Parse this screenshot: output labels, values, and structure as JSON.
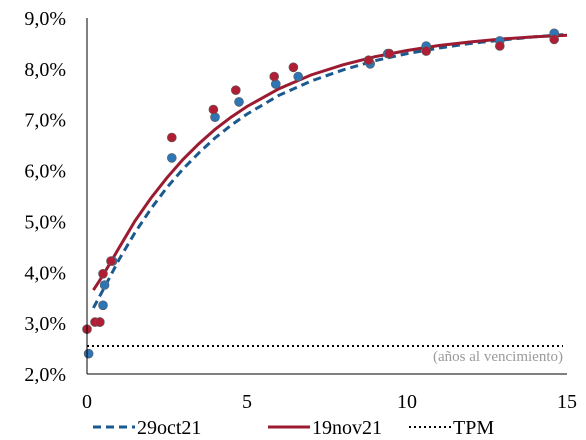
{
  "chart_data": {
    "type": "scatter",
    "x_ticks": [
      "0",
      "5",
      "10",
      "15"
    ],
    "y_ticks": [
      "2,0%",
      "3,0%",
      "4,0%",
      "5,0%",
      "6,0%",
      "7,0%",
      "8,0%",
      "9,0%"
    ],
    "xlim": [
      0,
      15
    ],
    "ylim": [
      2.0,
      9.0
    ],
    "grid": false,
    "legend_position": "bottom",
    "annotation": "(años al vencimiento)",
    "series": [
      {
        "name": "29oct21",
        "color": "#1a5a8e",
        "marker_color": "#2e75b6",
        "line_style": "dashed",
        "points": [
          [
            0.05,
            2.4
          ],
          [
            0.4,
            3.02
          ],
          [
            0.5,
            3.35
          ],
          [
            0.55,
            3.75
          ],
          [
            0.8,
            4.22
          ],
          [
            2.65,
            6.25
          ],
          [
            4.0,
            7.05
          ],
          [
            4.75,
            7.35
          ],
          [
            5.9,
            7.7
          ],
          [
            6.6,
            7.85
          ],
          [
            8.85,
            8.1
          ],
          [
            9.4,
            8.3
          ],
          [
            10.6,
            8.45
          ],
          [
            12.9,
            8.55
          ],
          [
            14.6,
            8.7
          ]
        ],
        "fit": [
          [
            0.2,
            3.3
          ],
          [
            0.5,
            3.65
          ],
          [
            1.0,
            4.25
          ],
          [
            1.5,
            4.78
          ],
          [
            2.0,
            5.25
          ],
          [
            2.5,
            5.67
          ],
          [
            3.0,
            6.03
          ],
          [
            3.5,
            6.35
          ],
          [
            4.0,
            6.64
          ],
          [
            4.5,
            6.89
          ],
          [
            5.0,
            7.11
          ],
          [
            6.0,
            7.48
          ],
          [
            7.0,
            7.76
          ],
          [
            8.0,
            7.98
          ],
          [
            9.0,
            8.16
          ],
          [
            10.0,
            8.3
          ],
          [
            11.0,
            8.41
          ],
          [
            12.0,
            8.5
          ],
          [
            13.0,
            8.57
          ],
          [
            14.0,
            8.63
          ],
          [
            15.0,
            8.68
          ]
        ]
      },
      {
        "name": "19nov21",
        "color": "#9b1b30",
        "marker_color": "#b01e35",
        "line_style": "solid",
        "points": [
          [
            0.0,
            2.88
          ],
          [
            0.25,
            3.02
          ],
          [
            0.4,
            3.02
          ],
          [
            0.5,
            3.97
          ],
          [
            0.75,
            4.22
          ],
          [
            2.65,
            6.65
          ],
          [
            3.95,
            7.2
          ],
          [
            4.65,
            7.58
          ],
          [
            5.85,
            7.85
          ],
          [
            6.45,
            8.03
          ],
          [
            8.8,
            8.17
          ],
          [
            9.45,
            8.3
          ],
          [
            10.6,
            8.35
          ],
          [
            12.9,
            8.45
          ],
          [
            14.6,
            8.58
          ]
        ],
        "fit": [
          [
            0.2,
            3.65
          ],
          [
            0.5,
            3.94
          ],
          [
            1.0,
            4.48
          ],
          [
            1.5,
            5.01
          ],
          [
            2.0,
            5.46
          ],
          [
            2.5,
            5.86
          ],
          [
            3.0,
            6.22
          ],
          [
            3.5,
            6.53
          ],
          [
            4.0,
            6.81
          ],
          [
            4.5,
            7.05
          ],
          [
            5.0,
            7.26
          ],
          [
            6.0,
            7.61
          ],
          [
            7.0,
            7.88
          ],
          [
            8.0,
            8.08
          ],
          [
            9.0,
            8.24
          ],
          [
            10.0,
            8.36
          ],
          [
            11.0,
            8.46
          ],
          [
            12.0,
            8.53
          ],
          [
            13.0,
            8.59
          ],
          [
            14.0,
            8.63
          ],
          [
            15.0,
            8.66
          ]
        ]
      },
      {
        "name": "TPM",
        "color": "#000000",
        "line_style": "dotted",
        "constant_y": 2.55
      }
    ]
  }
}
